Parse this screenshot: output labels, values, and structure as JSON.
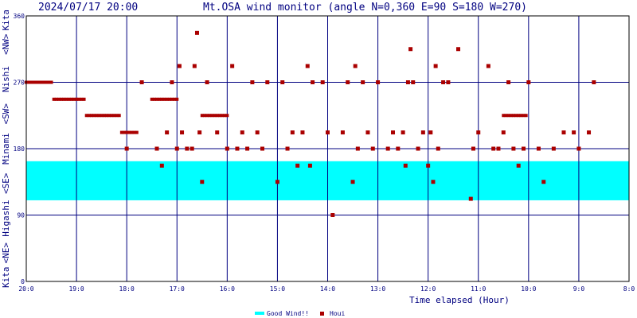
{
  "header": {
    "timestamp": "2024/07/17 20:00",
    "title": "Mt.OSA wind monitor (angle N=0,360 E=90 S=180 W=270)"
  },
  "y_axis_side_labels": [
    "Kita",
    "<NE>",
    "Higashi",
    "<SE>",
    "Minami",
    "<SW>",
    "Nishi",
    "<NW>",
    "Kita"
  ],
  "x_axis_title": "Time elapsed (Hour)",
  "legend": {
    "good_wind": "Good Wind!!",
    "houi": "Houi",
    "good_wind_color": "#00ffff",
    "houi_color": "#aa0000"
  },
  "chart_data": {
    "type": "scatter",
    "x_ticks": [
      "20:0",
      "19:0",
      "18:0",
      "17:0",
      "16:0",
      "15:0",
      "14:0",
      "13:0",
      "12:0",
      "11:0",
      "10:0",
      "9:0",
      "8:0"
    ],
    "y_ticks": [
      0,
      90,
      180,
      270,
      360
    ],
    "ylim": [
      0,
      360
    ],
    "x_range_hours_elapsed": [
      0,
      12
    ],
    "good_wind_band": [
      110,
      163
    ],
    "series": [
      {
        "name": "Houi",
        "color": "#aa0000",
        "trend": [
          [
            0.0,
            270
          ],
          [
            0.5,
            270
          ],
          [
            0.55,
            247
          ],
          [
            1.2,
            247
          ],
          [
            1.2,
            225
          ],
          [
            1.9,
            225
          ],
          [
            1.9,
            202
          ],
          [
            2.2,
            202
          ],
          [
            2.5,
            247
          ],
          [
            3.0,
            247
          ],
          [
            3.5,
            225
          ],
          [
            4.0,
            225
          ],
          [
            4.5,
            202
          ],
          [
            5.0,
            247
          ],
          [
            5.5,
            225
          ],
          [
            6.0,
            247
          ],
          [
            6.5,
            225
          ],
          [
            7.0,
            247
          ],
          [
            7.5,
            225
          ],
          [
            8.0,
            247
          ],
          [
            8.5,
            225
          ],
          [
            9.0,
            202
          ],
          [
            9.5,
            225
          ],
          [
            10.0,
            225
          ],
          [
            10.5,
            202
          ],
          [
            11.0,
            225
          ],
          [
            11.5,
            247
          ],
          [
            12.0,
            225
          ]
        ],
        "scatter": [
          [
            2.3,
            270
          ],
          [
            2.6,
            180
          ],
          [
            2.7,
            157
          ],
          [
            2.8,
            202
          ],
          [
            2.9,
            270
          ],
          [
            3.0,
            180
          ],
          [
            3.05,
            292
          ],
          [
            3.1,
            202
          ],
          [
            3.2,
            180
          ],
          [
            3.3,
            180
          ],
          [
            3.35,
            292
          ],
          [
            3.4,
            337
          ],
          [
            3.45,
            202
          ],
          [
            3.5,
            135
          ],
          [
            3.6,
            270
          ],
          [
            3.8,
            202
          ],
          [
            4.0,
            180
          ],
          [
            4.1,
            292
          ],
          [
            4.3,
            202
          ],
          [
            4.4,
            180
          ],
          [
            4.5,
            270
          ],
          [
            4.6,
            202
          ],
          [
            4.7,
            180
          ],
          [
            4.8,
            270
          ],
          [
            5.0,
            135
          ],
          [
            5.1,
            270
          ],
          [
            5.2,
            180
          ],
          [
            5.3,
            202
          ],
          [
            5.4,
            157
          ],
          [
            5.5,
            202
          ],
          [
            5.6,
            292
          ],
          [
            5.65,
            157
          ],
          [
            5.7,
            270
          ],
          [
            5.9,
            270
          ],
          [
            6.0,
            202
          ],
          [
            6.1,
            90
          ],
          [
            6.3,
            202
          ],
          [
            6.4,
            270
          ],
          [
            6.5,
            135
          ],
          [
            6.55,
            292
          ],
          [
            6.6,
            180
          ],
          [
            6.7,
            270
          ],
          [
            6.8,
            202
          ],
          [
            7.0,
            270
          ],
          [
            7.2,
            180
          ],
          [
            7.3,
            202
          ],
          [
            7.4,
            180
          ],
          [
            7.5,
            202
          ],
          [
            7.55,
            157
          ],
          [
            7.6,
            270
          ],
          [
            7.65,
            315
          ],
          [
            7.7,
            270
          ],
          [
            7.8,
            180
          ],
          [
            7.9,
            202
          ],
          [
            8.0,
            157
          ],
          [
            8.05,
            202
          ],
          [
            8.1,
            135
          ],
          [
            8.15,
            292
          ],
          [
            8.2,
            180
          ],
          [
            8.3,
            270
          ],
          [
            8.4,
            270
          ],
          [
            8.6,
            315
          ],
          [
            8.85,
            112
          ],
          [
            8.9,
            180
          ],
          [
            9.0,
            202
          ],
          [
            9.2,
            292
          ],
          [
            9.4,
            180
          ],
          [
            9.5,
            202
          ],
          [
            9.6,
            270
          ],
          [
            9.7,
            180
          ],
          [
            9.8,
            157
          ],
          [
            9.9,
            180
          ],
          [
            10.0,
            270
          ],
          [
            10.2,
            180
          ],
          [
            10.3,
            135
          ],
          [
            10.5,
            180
          ],
          [
            10.7,
            202
          ],
          [
            11.0,
            180
          ],
          [
            11.2,
            202
          ],
          [
            11.3,
            270
          ],
          [
            2.0,
            180
          ],
          [
            4.2,
            180
          ],
          [
            6.9,
            180
          ],
          [
            9.3,
            180
          ],
          [
            10.9,
            202
          ]
        ]
      }
    ]
  }
}
